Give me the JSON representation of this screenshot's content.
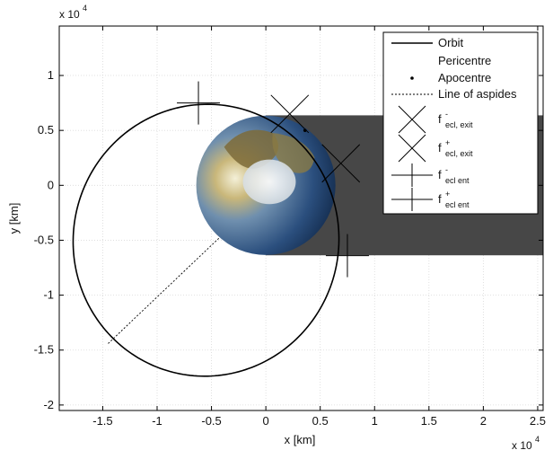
{
  "chart_data": {
    "type": "line",
    "title": "",
    "xlabel": "x [km]",
    "ylabel": "y [km]",
    "x_exponent": "x 10",
    "x_exponent_power": "4",
    "y_exponent": "x 10",
    "y_exponent_power": "4",
    "xlim": [
      -19000,
      25500
    ],
    "ylim": [
      -20500,
      14500
    ],
    "xticks": [
      -15000,
      -10000,
      -5000,
      0,
      5000,
      10000,
      15000,
      20000,
      25000
    ],
    "yticks": [
      -20000,
      -15000,
      -10000,
      -5000,
      0,
      5000,
      10000
    ],
    "xtick_labels": [
      "-1.5",
      "-1",
      "-0.5",
      "0",
      "0.5",
      "1",
      "1.5",
      "2",
      "2.5"
    ],
    "ytick_labels": [
      "-2",
      "-1.5",
      "-1",
      "-0.5",
      "0",
      "0.5",
      "1"
    ],
    "grid": true,
    "legend_position": "top-right",
    "planet": {
      "center": [
        0,
        0
      ],
      "radius": 6371
    },
    "eclipse_shadow": {
      "x_from": 0,
      "x_to": 25500,
      "y_from": -6371,
      "y_to": 6371
    },
    "orbit": {
      "name": "Orbit",
      "center": [
        -5500,
        -5000
      ],
      "semi_axis_x": 12200,
      "semi_axis_y": 12400,
      "rotation_deg": -20
    },
    "pericentre": {
      "name": "Pericentre",
      "x": 3600,
      "y": 5000
    },
    "apocentre": {
      "name": "Apocentre",
      "x": 3600,
      "y": 5000
    },
    "line_of_apsides": {
      "name": "Line of aspides",
      "from": [
        -14500,
        -14400
      ],
      "to": [
        -4300,
        -4800
      ]
    },
    "ecl_exit_minus": {
      "x": 2200,
      "y": 6500
    },
    "ecl_exit_plus": {
      "x": 6900,
      "y": 2000
    },
    "ecl_ent_minus": {
      "x": -6200,
      "y": 7500
    },
    "ecl_ent_plus": {
      "x": 7500,
      "y": -6400
    },
    "legend": [
      {
        "label": "Orbit",
        "sub": "",
        "sup": "",
        "marker": "solid"
      },
      {
        "label": "Pericentre",
        "sub": "",
        "sup": "",
        "marker": "none"
      },
      {
        "label": "Apocentre",
        "sub": "",
        "sup": "",
        "marker": "dot"
      },
      {
        "label": "Line of aspides",
        "sub": "",
        "sup": "",
        "marker": "dotted"
      },
      {
        "label": "f",
        "sup": "-",
        "sub": "ecl, exit",
        "marker": "x"
      },
      {
        "label": "f",
        "sup": "+",
        "sub": "ecl, exit",
        "marker": "x"
      },
      {
        "label": "f",
        "sup": "-",
        "sub": "ecl ent",
        "marker": "plus"
      },
      {
        "label": "f",
        "sup": "+",
        "sub": "ecl ent",
        "marker": "plus"
      }
    ]
  }
}
